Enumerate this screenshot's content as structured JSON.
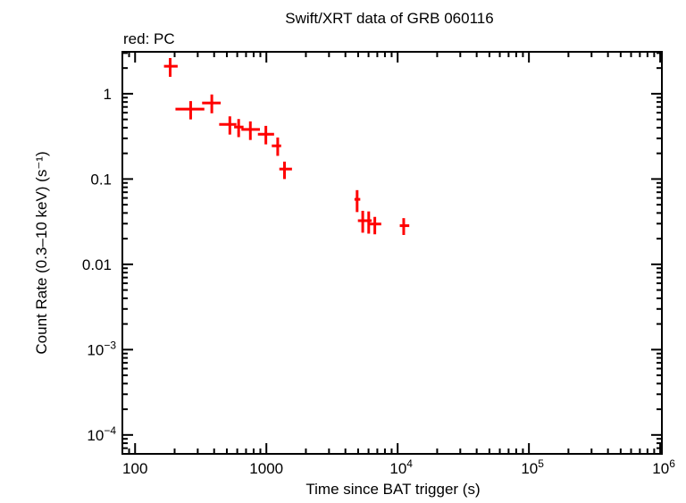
{
  "chart_data": {
    "type": "scatter",
    "title": "Swift/XRT data of GRB 060116",
    "subtitle": "red: PC",
    "xlabel": "Time since BAT trigger (s)",
    "ylabel": "Count Rate (0.3–10 keV) (s⁻¹)",
    "xscale": "log",
    "yscale": "log",
    "xlim": [
      80,
      1030000
    ],
    "ylim": [
      6e-05,
      3.1
    ],
    "grid": false,
    "x_ticks": [
      {
        "value": 100,
        "label": "100"
      },
      {
        "value": 1000,
        "label": "1000"
      },
      {
        "value": 10000,
        "base": "10",
        "exp": "4"
      },
      {
        "value": 100000,
        "base": "10",
        "exp": "5"
      },
      {
        "value": 1000000,
        "base": "10",
        "exp": "6"
      }
    ],
    "y_ticks": [
      {
        "value": 1,
        "label": "1"
      },
      {
        "value": 0.1,
        "label": "0.1"
      },
      {
        "value": 0.01,
        "label": "0.01"
      },
      {
        "value": 0.001,
        "base": "10",
        "exp": "−3"
      },
      {
        "value": 0.0001,
        "base": "10",
        "exp": "−4"
      }
    ],
    "series": [
      {
        "name": "PC",
        "color": "#ff0000",
        "points": [
          {
            "x": 185,
            "xlo": 166,
            "xhi": 211,
            "y": 2.1,
            "ylo": 1.58,
            "yhi": 2.62
          },
          {
            "x": 265,
            "xlo": 203,
            "xhi": 337,
            "y": 0.66,
            "ylo": 0.5,
            "yhi": 0.82
          },
          {
            "x": 384,
            "xlo": 324,
            "xhi": 449,
            "y": 0.78,
            "ylo": 0.59,
            "yhi": 0.98
          },
          {
            "x": 527,
            "xlo": 437,
            "xhi": 591,
            "y": 0.437,
            "ylo": 0.332,
            "yhi": 0.543
          },
          {
            "x": 615,
            "xlo": 568,
            "xhi": 670,
            "y": 0.407,
            "ylo": 0.31,
            "yhi": 0.505
          },
          {
            "x": 755,
            "xlo": 645,
            "xhi": 893,
            "y": 0.381,
            "ylo": 0.287,
            "yhi": 0.474
          },
          {
            "x": 991,
            "xlo": 862,
            "xhi": 1145,
            "y": 0.335,
            "ylo": 0.255,
            "yhi": 0.42
          },
          {
            "x": 1220,
            "xlo": 1100,
            "xhi": 1296,
            "y": 0.245,
            "ylo": 0.187,
            "yhi": 0.307
          },
          {
            "x": 1374,
            "xlo": 1255,
            "xhi": 1567,
            "y": 0.131,
            "ylo": 0.1,
            "yhi": 0.16
          },
          {
            "x": 4912,
            "xlo": 4690,
            "xhi": 5190,
            "y": 0.0578,
            "ylo": 0.041,
            "yhi": 0.0741
          },
          {
            "x": 5420,
            "xlo": 4980,
            "xhi": 5870,
            "y": 0.0325,
            "ylo": 0.0235,
            "yhi": 0.0424
          },
          {
            "x": 6020,
            "xlo": 5580,
            "xhi": 6340,
            "y": 0.0325,
            "ylo": 0.0229,
            "yhi": 0.0417
          },
          {
            "x": 6700,
            "xlo": 6140,
            "xhi": 7500,
            "y": 0.0297,
            "ylo": 0.0225,
            "yhi": 0.036
          },
          {
            "x": 11120,
            "xlo": 10380,
            "xhi": 12260,
            "y": 0.0284,
            "ylo": 0.0221,
            "yhi": 0.0348
          }
        ]
      }
    ]
  }
}
